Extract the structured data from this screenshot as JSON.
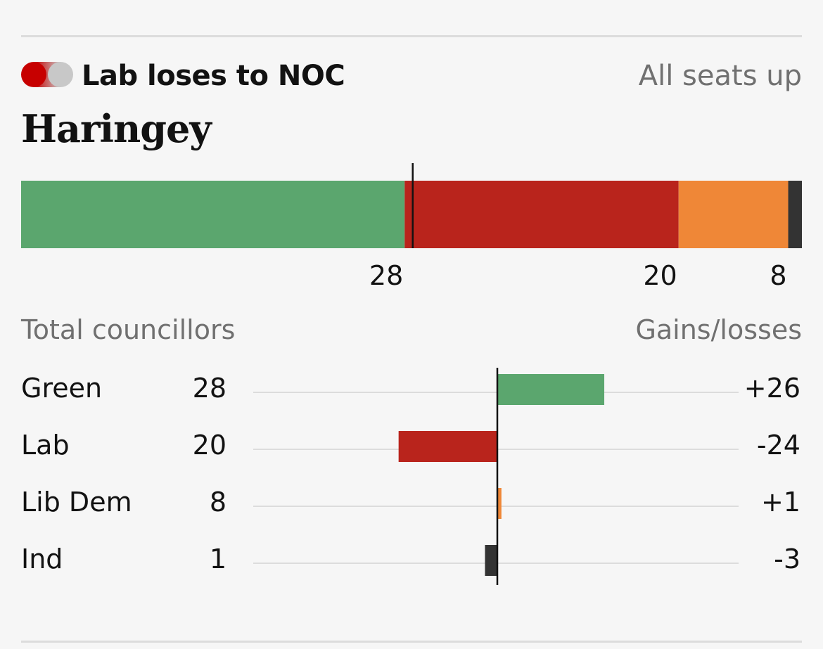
{
  "header": {
    "result": "Lab loses to NOC",
    "from_color": "#c70000",
    "to_color": "#c8c8c8",
    "seats_note": "All seats up"
  },
  "council": "Haringey",
  "columns": {
    "left": "Total councillors",
    "right": "Gains/losses"
  },
  "chart_data": [
    {
      "type": "bar",
      "orientation": "horizontal-stacked",
      "categories": [
        "Green",
        "Lab",
        "Lib Dem",
        "Ind"
      ],
      "values": [
        28,
        20,
        8,
        1
      ],
      "value_labels": [
        "28",
        "20",
        "8",
        ""
      ],
      "colors": [
        "#5ba66e",
        "#b9241c",
        "#ef8737",
        "#333333"
      ],
      "majority_marker": 29,
      "total": 57
    },
    {
      "type": "bar",
      "orientation": "horizontal-diverging",
      "categories": [
        "Green",
        "Lab",
        "Lib Dem",
        "Ind"
      ],
      "totals": [
        "28",
        "20",
        "8",
        "1"
      ],
      "values": [
        26,
        -24,
        1,
        -3
      ],
      "value_labels": [
        "+26",
        "-24",
        "+1",
        "-3"
      ],
      "colors": [
        "#5ba66e",
        "#b9241c",
        "#ef8737",
        "#333333"
      ],
      "xlim": [
        -59,
        59
      ]
    }
  ]
}
